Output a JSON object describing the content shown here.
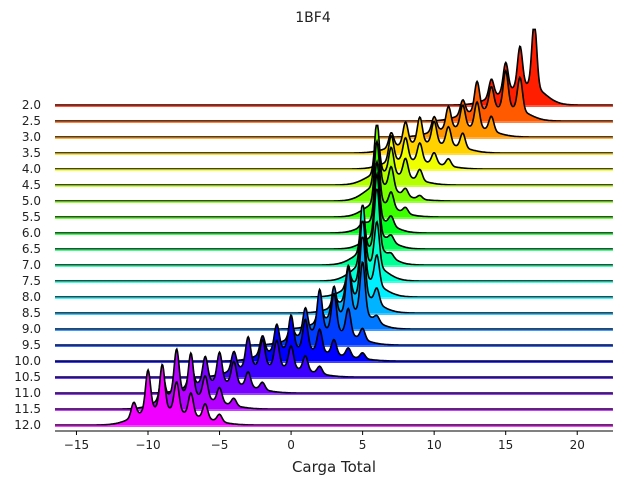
{
  "chart_data": {
    "type": "ridgeline",
    "title": "1BF4",
    "xlabel": "Carga Total",
    "ylabel": "",
    "xlim": [
      -16.5,
      22.5
    ],
    "xticks": [
      -15,
      -10,
      -5,
      0,
      5,
      10,
      15,
      20
    ],
    "grid": false,
    "legend": "none",
    "series": [
      {
        "name": "2.0",
        "color": "#ff1e00",
        "peaks": [
          [
            16,
            0.55
          ],
          [
            17,
            0.9
          ],
          [
            15,
            0.4
          ],
          [
            14,
            0.25
          ]
        ]
      },
      {
        "name": "2.5",
        "color": "#ff5a00",
        "peaks": [
          [
            13,
            0.4
          ],
          [
            15,
            0.5
          ],
          [
            16,
            0.45
          ],
          [
            14,
            0.3
          ],
          [
            12,
            0.2
          ]
        ]
      },
      {
        "name": "3.0",
        "color": "#ff9600",
        "peaks": [
          [
            11,
            0.3
          ],
          [
            13,
            0.35
          ],
          [
            12,
            0.3
          ],
          [
            14,
            0.2
          ],
          [
            10,
            0.2
          ]
        ]
      },
      {
        "name": "3.5",
        "color": "#ffd200",
        "peaks": [
          [
            8,
            0.3
          ],
          [
            9,
            0.35
          ],
          [
            10,
            0.3
          ],
          [
            11,
            0.25
          ],
          [
            12,
            0.2
          ],
          [
            7,
            0.2
          ]
        ]
      },
      {
        "name": "4.0",
        "color": "#f0ff00",
        "peaks": [
          [
            7,
            0.35
          ],
          [
            8,
            0.3
          ],
          [
            9,
            0.25
          ],
          [
            10,
            0.15
          ],
          [
            11,
            0.1
          ]
        ]
      },
      {
        "name": "4.5",
        "color": "#b4ff00",
        "peaks": [
          [
            6,
            0.6
          ],
          [
            7,
            0.35
          ],
          [
            8,
            0.25
          ],
          [
            9,
            0.15
          ]
        ]
      },
      {
        "name": "5.0",
        "color": "#78ff00",
        "peaks": [
          [
            6,
            0.9
          ],
          [
            7,
            0.3
          ],
          [
            8,
            0.1
          ],
          [
            9,
            0.05
          ]
        ]
      },
      {
        "name": "5.5",
        "color": "#3cff00",
        "peaks": [
          [
            6,
            0.85
          ],
          [
            7,
            0.2
          ],
          [
            8,
            0.08
          ]
        ]
      },
      {
        "name": "6.0",
        "color": "#00ff1e",
        "peaks": [
          [
            6,
            0.8
          ],
          [
            7,
            0.12
          ],
          [
            5,
            0.05
          ]
        ]
      },
      {
        "name": "6.5",
        "color": "#00ff5a",
        "peaks": [
          [
            6,
            0.85
          ],
          [
            7,
            0.08
          ]
        ]
      },
      {
        "name": "7.0",
        "color": "#00ff96",
        "peaks": [
          [
            6,
            0.85
          ],
          [
            5,
            0.5
          ],
          [
            7,
            0.05
          ]
        ]
      },
      {
        "name": "7.5",
        "color": "#00ffd2",
        "peaks": [
          [
            5,
            0.85
          ],
          [
            6,
            0.6
          ]
        ]
      },
      {
        "name": "8.0",
        "color": "#00f0ff",
        "peaks": [
          [
            5,
            0.85
          ],
          [
            6,
            0.4
          ],
          [
            4,
            0.2
          ]
        ]
      },
      {
        "name": "8.5",
        "color": "#00b4ff",
        "peaks": [
          [
            5,
            0.85
          ],
          [
            4,
            0.45
          ],
          [
            6,
            0.2
          ],
          [
            3,
            0.15
          ]
        ]
      },
      {
        "name": "9.0",
        "color": "#0078ff",
        "peaks": [
          [
            4,
            0.6
          ],
          [
            5,
            0.7
          ],
          [
            3,
            0.4
          ],
          [
            2,
            0.25
          ],
          [
            6,
            0.08
          ]
        ]
      },
      {
        "name": "9.5",
        "color": "#003cff",
        "peaks": [
          [
            2,
            0.55
          ],
          [
            3,
            0.5
          ],
          [
            1,
            0.35
          ],
          [
            4,
            0.35
          ],
          [
            0,
            0.2
          ],
          [
            5,
            0.15
          ]
        ]
      },
      {
        "name": "10.0",
        "color": "#0000ff",
        "peaks": [
          [
            0,
            0.45
          ],
          [
            1,
            0.4
          ],
          [
            -1,
            0.35
          ],
          [
            2,
            0.3
          ],
          [
            -2,
            0.25
          ],
          [
            3,
            0.2
          ],
          [
            4,
            0.12
          ],
          [
            5,
            0.08
          ]
        ]
      },
      {
        "name": "10.5",
        "color": "#3c00ff",
        "peaks": [
          [
            -3,
            0.4
          ],
          [
            -2,
            0.35
          ],
          [
            -1,
            0.35
          ],
          [
            0,
            0.3
          ],
          [
            -4,
            0.25
          ],
          [
            1,
            0.2
          ],
          [
            2,
            0.1
          ]
        ]
      },
      {
        "name": "11.0",
        "color": "#7800ff",
        "peaks": [
          [
            -5,
            0.4
          ],
          [
            -6,
            0.35
          ],
          [
            -4,
            0.3
          ],
          [
            -7,
            0.3
          ],
          [
            -3,
            0.2
          ],
          [
            -2,
            0.1
          ]
        ]
      },
      {
        "name": "11.5",
        "color": "#b400ff",
        "peaks": [
          [
            -7,
            0.55
          ],
          [
            -8,
            0.6
          ],
          [
            -6,
            0.3
          ],
          [
            -9,
            0.35
          ],
          [
            -5,
            0.2
          ],
          [
            -4,
            0.1
          ]
        ]
      },
      {
        "name": "12.0",
        "color": "#f000ff",
        "peaks": [
          [
            -9,
            0.6
          ],
          [
            -10,
            0.55
          ],
          [
            -8,
            0.4
          ],
          [
            -7,
            0.3
          ],
          [
            -6,
            0.2
          ],
          [
            -11,
            0.2
          ],
          [
            -5,
            0.1
          ]
        ]
      }
    ]
  }
}
